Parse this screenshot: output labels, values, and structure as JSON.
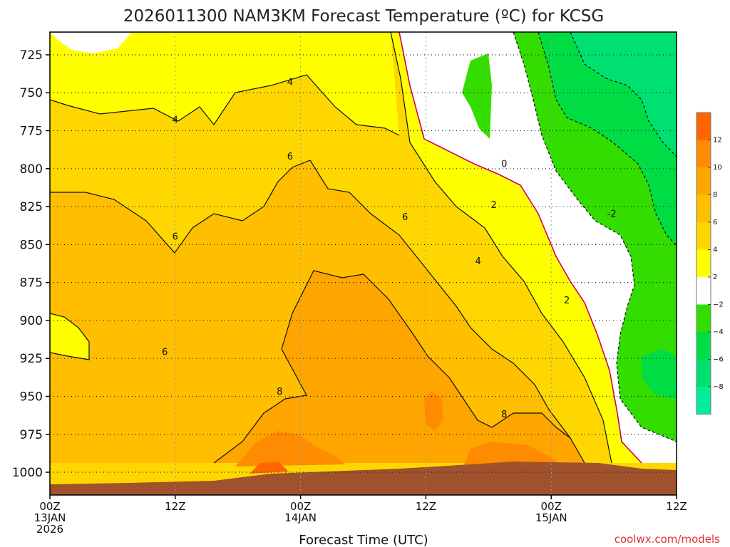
{
  "chart_data": {
    "type": "contour",
    "title": "2026011300 NAM3KM Forecast Temperature (ºC) for KCSG",
    "xlabel": "Forecast Time (UTC)",
    "ylabel": "",
    "credit": "coolwx.com/models",
    "x_range_hours": [
      0,
      60
    ],
    "y_axis": "pressure (mb)",
    "ylim": [
      1015,
      710
    ],
    "x_ticks": [
      {
        "hour": 0,
        "lines": [
          "00Z",
          "13JAN",
          "2026"
        ]
      },
      {
        "hour": 12,
        "lines": [
          "12Z"
        ]
      },
      {
        "hour": 24,
        "lines": [
          "00Z",
          "14JAN"
        ]
      },
      {
        "hour": 36,
        "lines": [
          "12Z"
        ]
      },
      {
        "hour": 48,
        "lines": [
          "00Z",
          "15JAN"
        ]
      },
      {
        "hour": 60,
        "lines": [
          "12Z"
        ]
      }
    ],
    "y_ticks": [
      "725",
      "750",
      "775",
      "800",
      "825",
      "850",
      "875",
      "900",
      "925",
      "950",
      "975",
      "1000"
    ],
    "y_tick_values": [
      725,
      750,
      775,
      800,
      825,
      850,
      875,
      900,
      925,
      950,
      975,
      1000
    ],
    "grid": true,
    "contour_labels": [
      {
        "text": "4",
        "hour": 23.0,
        "p": 743
      },
      {
        "text": "4",
        "hour": 12.0,
        "p": 768
      },
      {
        "text": "6",
        "hour": 23.0,
        "p": 792
      },
      {
        "text": "6",
        "hour": 12.0,
        "p": 845
      },
      {
        "text": "6",
        "hour": 34.0,
        "p": 832
      },
      {
        "text": "6",
        "hour": 11.0,
        "p": 921
      },
      {
        "text": "0",
        "hour": 43.5,
        "p": 797
      },
      {
        "text": "2",
        "hour": 42.5,
        "p": 824
      },
      {
        "text": "-2",
        "hour": 53.8,
        "p": 830
      },
      {
        "text": "4",
        "hour": 41.0,
        "p": 861
      },
      {
        "text": "2",
        "hour": 49.5,
        "p": 887
      },
      {
        "text": "8",
        "hour": 22.0,
        "p": 947
      },
      {
        "text": "8",
        "hour": 43.5,
        "p": 962
      }
    ],
    "colorbar": {
      "labels": [
        "12",
        "10",
        "8",
        "6",
        "4",
        "2",
        "−2",
        "−4",
        "−6",
        "−8"
      ],
      "colors": [
        "#ff6600",
        "#ff8c00",
        "#ffa500",
        "#ffbf00",
        "#ffd700",
        "#ffff00",
        "#ffffff",
        "#33dd00",
        "#00dd44",
        "#00e070",
        "#00ee99"
      ]
    }
  }
}
